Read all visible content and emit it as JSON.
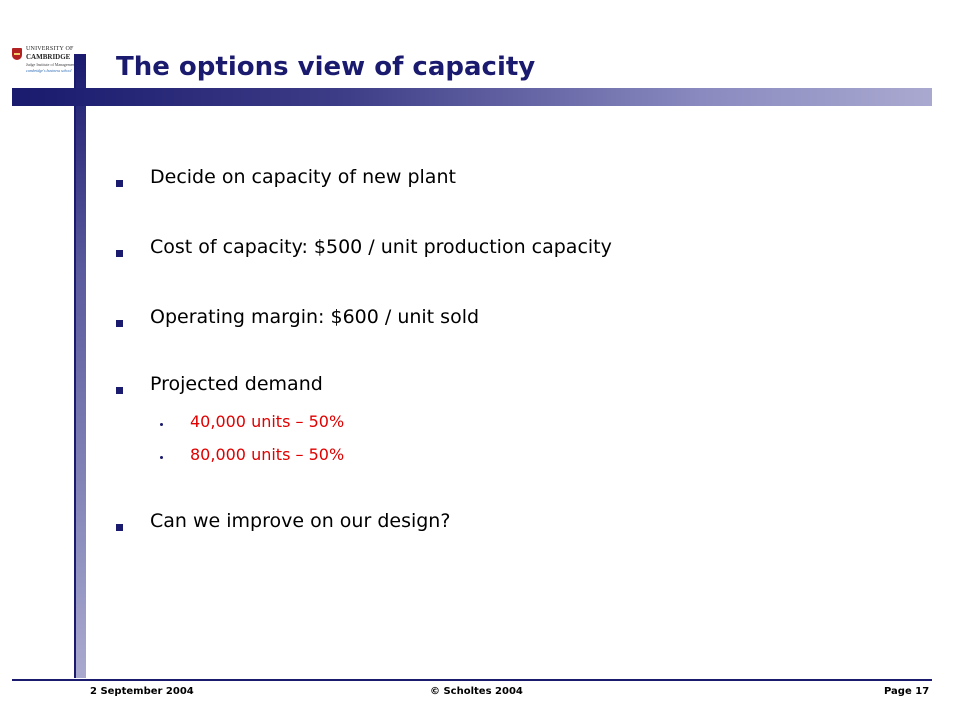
{
  "logo": {
    "line1": "UNIVERSITY OF",
    "line2": "CAMBRIDGE",
    "line3": "Judge Institute of Management",
    "line4": "cambridge's business school"
  },
  "slide": {
    "title": "The options view of capacity",
    "bullets": [
      {
        "text": "Decide on capacity of new plant"
      },
      {
        "text": "Cost of capacity: $500 / unit production capacity"
      },
      {
        "text": "Operating margin: $600 / unit sold"
      },
      {
        "text": "Projected demand",
        "sub": [
          "40,000 units – 50%",
          "80,000 units – 50%"
        ]
      },
      {
        "text": "Can we improve on our design?"
      }
    ]
  },
  "footer": {
    "date": "2 September 2004",
    "copyright": "© Scholtes 2004",
    "page": "Page 17"
  },
  "colors": {
    "accent": "#1a1a6e",
    "sub_text": "#e00000"
  }
}
